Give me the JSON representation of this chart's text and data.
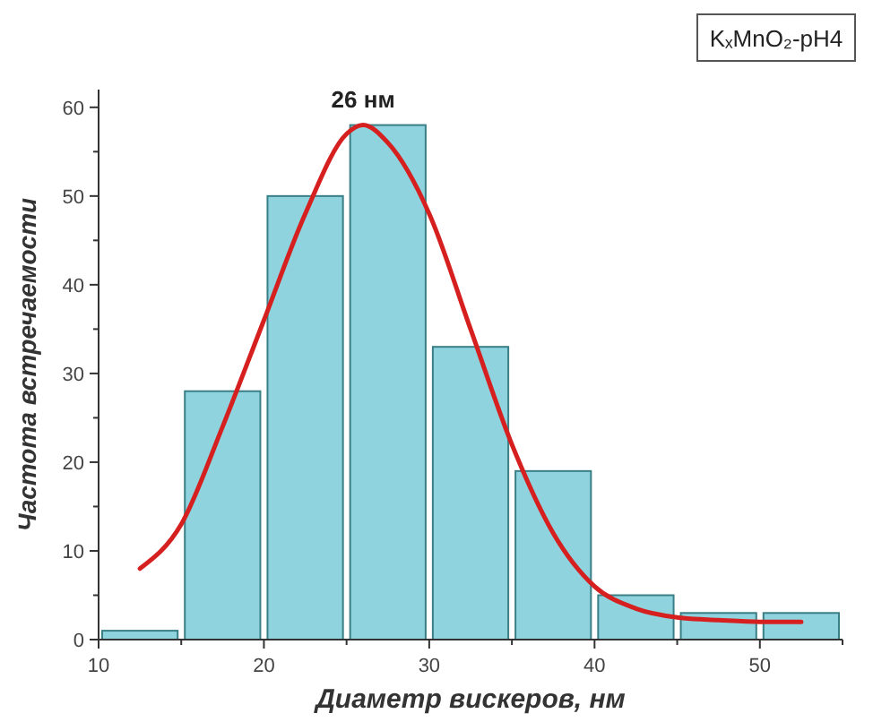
{
  "chart_data": {
    "type": "histogram",
    "xlabel": "Диаметр вискеров, нм",
    "ylabel": "Частота встречаемости",
    "bins": [
      10,
      15,
      20,
      25,
      30,
      35,
      40,
      45,
      50,
      55
    ],
    "values": [
      1,
      28,
      50,
      58,
      33,
      19,
      5,
      3,
      3
    ],
    "color": "#8fd3de",
    "series": [
      {
        "type": "line",
        "color": "#d62020",
        "x": [
          12.5,
          15,
          17.5,
          20,
          22.5,
          25,
          26,
          27.5,
          30,
          32.5,
          35,
          37.5,
          40,
          42.5,
          45,
          47.5,
          50,
          52.5
        ],
        "values": [
          8,
          13,
          24,
          36,
          48,
          57,
          58,
          56,
          48,
          35,
          22,
          12,
          6,
          3.5,
          2.5,
          2.2,
          2,
          2
        ]
      }
    ],
    "xlim": [
      10,
      55
    ],
    "ylim": [
      0,
      62
    ],
    "xticks": [
      10,
      {
        "value": 15,
        "label": null
      },
      20,
      {
        "value": 25,
        "label": null
      },
      30,
      {
        "value": 35,
        "label": null
      },
      40,
      {
        "value": 45,
        "label": null
      },
      50,
      {
        "value": 55,
        "label": null
      }
    ],
    "yticks": [
      0,
      {
        "value": 5,
        "label": null
      },
      10,
      {
        "value": 15,
        "label": null
      },
      20,
      {
        "value": 25,
        "label": null
      },
      30,
      {
        "value": 35,
        "label": null
      },
      40,
      {
        "value": 45,
        "label": null
      },
      50,
      {
        "value": 55,
        "label": null
      },
      60
    ],
    "annotations": [
      "KₓMnO₂-pH4",
      {
        "text": "26 нм",
        "x": 26,
        "y": 58
      }
    ]
  }
}
